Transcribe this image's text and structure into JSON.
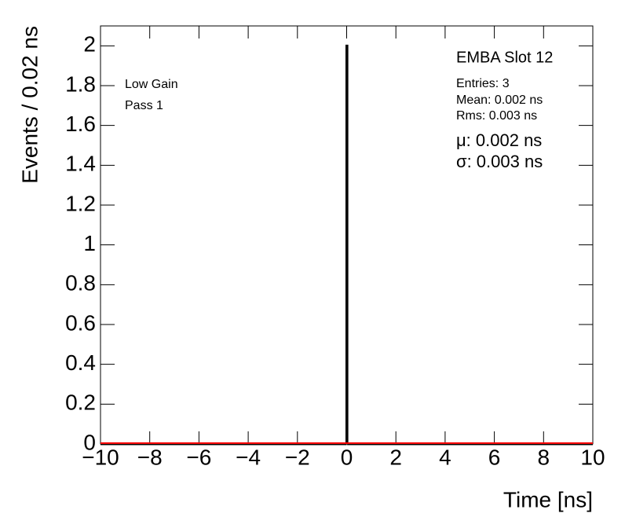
{
  "chart_data": {
    "type": "histogram",
    "title": "EMBA Slot 12",
    "stats": [
      "Entries: 3",
      "Mean: 0.002 ns",
      "Rms: 0.003 ns"
    ],
    "fit_stats": [
      "μ: 0.002 ns",
      "σ: 0.003 ns"
    ],
    "annotations": [
      "Low Gain",
      "Pass 1"
    ],
    "x_label": "Time [ns]",
    "y_label": "Events / 0.02 ns",
    "bins": [
      -10,
      0,
      0.02,
      10
    ],
    "counts": [
      0,
      2,
      0
    ],
    "color": "#000000",
    "fit_color": "#ff0000",
    "xlim": [
      -10,
      10
    ],
    "ylim": [
      0,
      2.1
    ],
    "xticks": [
      {
        "value": -10,
        "label": "−10"
      },
      {
        "value": -8,
        "label": "−8"
      },
      {
        "value": -6,
        "label": "−6"
      },
      {
        "value": -4,
        "label": "−4"
      },
      {
        "value": -2,
        "label": "−2"
      },
      0,
      2,
      4,
      6,
      8,
      10
    ],
    "yticks": [
      0,
      0.2,
      0.4,
      0.6,
      0.8,
      1,
      1.2,
      1.4,
      1.6,
      1.8,
      2
    ]
  }
}
